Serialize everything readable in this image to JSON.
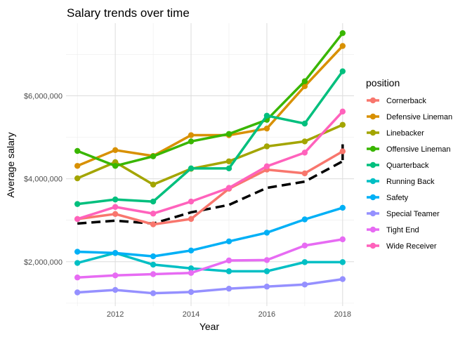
{
  "chart_data": {
    "type": "line",
    "title": "Salary trends over time",
    "xlabel": "Year",
    "ylabel": "Average salary",
    "xlim": [
      2010.7,
      2018.3
    ],
    "ylim": [
      930000,
      7750000
    ],
    "x_ticks": [
      2012,
      2014,
      2016,
      2018
    ],
    "x_tick_labels": [
      "2012",
      "2014",
      "2016",
      "2018"
    ],
    "y_ticks": [
      2000000,
      4000000,
      6000000
    ],
    "y_tick_labels": [
      "$2,000,000",
      "$4,000,000",
      "$6,000,000"
    ],
    "grid": true,
    "legend_title": "position",
    "legend_position": "right",
    "x": [
      2011,
      2012,
      2013,
      2014,
      2015,
      2016,
      2017,
      2018
    ],
    "series": [
      {
        "name": "Cornerback",
        "color": "#F8766D",
        "values": [
          3030000,
          3150000,
          2900000,
          3030000,
          3760000,
          4220000,
          4130000,
          4660000
        ]
      },
      {
        "name": "Defensive Lineman",
        "color": "#D89000",
        "values": [
          4310000,
          4690000,
          4550000,
          5050000,
          5050000,
          5210000,
          6230000,
          7200000
        ]
      },
      {
        "name": "Linebacker",
        "color": "#A3A500",
        "values": [
          4010000,
          4400000,
          3860000,
          4240000,
          4420000,
          4780000,
          4900000,
          5300000
        ]
      },
      {
        "name": "Offensive Lineman",
        "color": "#39B600",
        "values": [
          4670000,
          4310000,
          4540000,
          4900000,
          5080000,
          5420000,
          6350000,
          7510000
        ]
      },
      {
        "name": "Quarterback",
        "color": "#00BF7D",
        "values": [
          3390000,
          3500000,
          3450000,
          4250000,
          4250000,
          5520000,
          5330000,
          6590000
        ]
      },
      {
        "name": "Running Back",
        "color": "#00BFC4",
        "values": [
          1970000,
          2210000,
          1930000,
          1840000,
          1770000,
          1770000,
          1990000,
          1990000
        ]
      },
      {
        "name": "Safety",
        "color": "#00B0F6",
        "values": [
          2240000,
          2210000,
          2130000,
          2270000,
          2490000,
          2700000,
          3020000,
          3300000
        ]
      },
      {
        "name": "Special Teamer",
        "color": "#9590FF",
        "values": [
          1260000,
          1320000,
          1240000,
          1270000,
          1350000,
          1400000,
          1450000,
          1580000
        ]
      },
      {
        "name": "Tight End",
        "color": "#E76BF3",
        "values": [
          1620000,
          1670000,
          1700000,
          1730000,
          2030000,
          2040000,
          2390000,
          2540000
        ]
      },
      {
        "name": "Wide Receiver",
        "color": "#FF62BC",
        "values": [
          3030000,
          3320000,
          3160000,
          3450000,
          3780000,
          4300000,
          4630000,
          5620000
        ]
      }
    ],
    "trend": {
      "color": "#000000",
      "values": [
        2920000,
        2990000,
        2920000,
        3190000,
        3370000,
        3780000,
        3930000,
        4420000
      ],
      "end_values": [
        4450000,
        4830000
      ]
    }
  }
}
